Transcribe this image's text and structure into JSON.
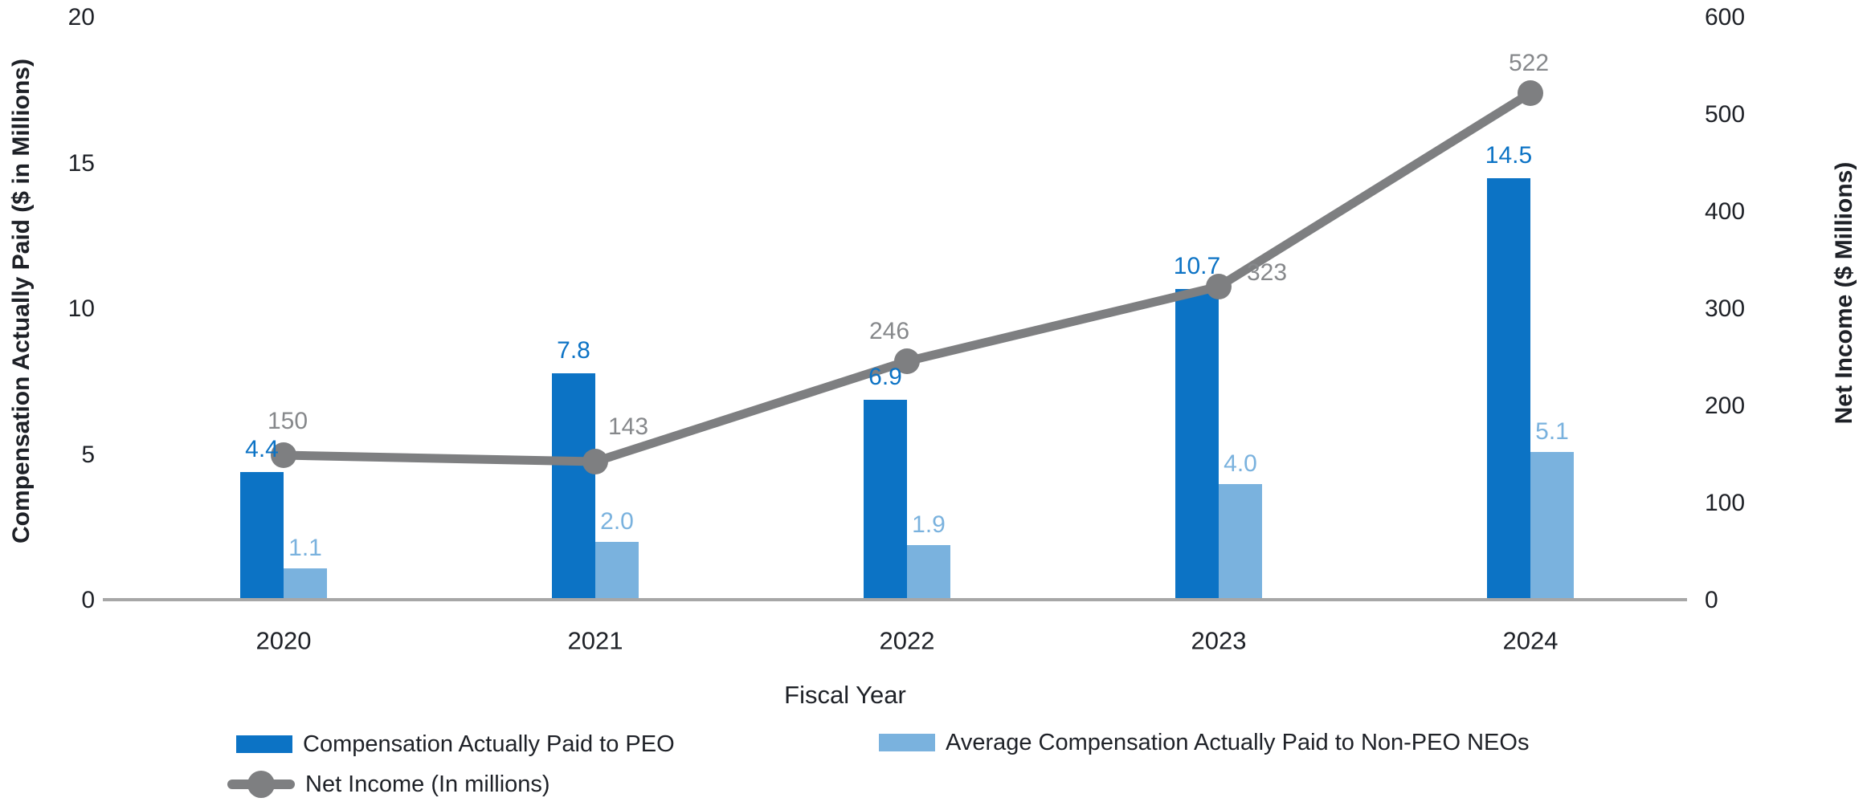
{
  "chart_data": {
    "type": "bar",
    "subtype": "grouped-bar-with-line-overlay",
    "categories": [
      "2020",
      "2021",
      "2022",
      "2023",
      "2024"
    ],
    "series": [
      {
        "name": "Compensation Actually Paid to PEO",
        "type": "bar",
        "axis": "left",
        "color": "#0c73c5",
        "values": [
          4.4,
          7.8,
          6.9,
          10.7,
          14.5
        ],
        "labels": [
          "4.4",
          "7.8",
          "6.9",
          "10.7",
          "14.5"
        ]
      },
      {
        "name": "Average Compensation Actually Paid to Non-PEO NEOs",
        "type": "bar",
        "axis": "left",
        "color": "#7ab2de",
        "values": [
          1.1,
          2.0,
          1.9,
          4.0,
          5.1
        ],
        "labels": [
          "1.1",
          "2.0",
          "1.9",
          "4.0",
          "5.1"
        ]
      },
      {
        "name": "Net Income (In millions)",
        "type": "line",
        "axis": "right",
        "color": "#7e7f81",
        "label_color": "#86888b",
        "values": [
          150,
          143,
          246,
          323,
          522
        ],
        "labels": [
          "150",
          "143",
          "246",
          "323",
          "522"
        ]
      }
    ],
    "left_axis": {
      "title": "Compensation Actually Paid ($ in Millions)",
      "range": [
        0,
        20
      ],
      "ticks": [
        "20",
        "15",
        "10",
        "5",
        "0"
      ],
      "tick_values": [
        20,
        15,
        10,
        5,
        0
      ]
    },
    "right_axis": {
      "title": "Net Income ($ Millions)",
      "range": [
        0,
        600
      ],
      "ticks": [
        "600",
        "500",
        "400",
        "300",
        "200",
        "100",
        "0"
      ],
      "tick_values": [
        600,
        500,
        400,
        300,
        200,
        100,
        0
      ]
    },
    "xlabel": "Fiscal Year",
    "grid": false,
    "legend_position": "bottom",
    "baseline_color": "#a7a7a7",
    "text_color": "#1e2127"
  }
}
